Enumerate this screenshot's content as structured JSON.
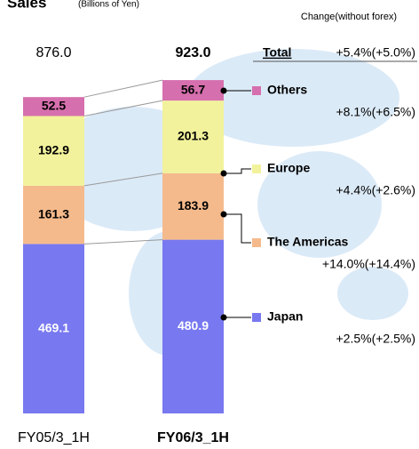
{
  "chart_data": {
    "type": "stacked-bar",
    "title": "Sales",
    "subtitle": "(Billions of Yen)",
    "change_heading": "Change(without forex)",
    "categories": [
      "FY05/3_1H",
      "FY06/3_1H"
    ],
    "series": [
      {
        "name": "Japan",
        "color": "#7878f0",
        "label_color": "#ffffff",
        "values": [
          469.1,
          480.9
        ],
        "change": "+2.5%(+2.5%)"
      },
      {
        "name": "The Americas",
        "color": "#f5ba8c",
        "label_color": "#000000",
        "values": [
          161.3,
          183.9
        ],
        "change": "+14.0%(+14.4%)"
      },
      {
        "name": "Europe",
        "color": "#f2f29c",
        "label_color": "#000000",
        "values": [
          192.9,
          201.3
        ],
        "change": "+4.4%(+2.6%)"
      },
      {
        "name": "Others",
        "color": "#d66fae",
        "label_color": "#000000",
        "values": [
          52.5,
          56.7
        ],
        "change": "+8.1%(+6.5%)"
      }
    ],
    "total": {
      "name": "Total",
      "values": [
        876,
        923
      ],
      "value_labels": [
        "876.0",
        "923.0"
      ],
      "change": "+5.4%(+5.0%)"
    }
  }
}
